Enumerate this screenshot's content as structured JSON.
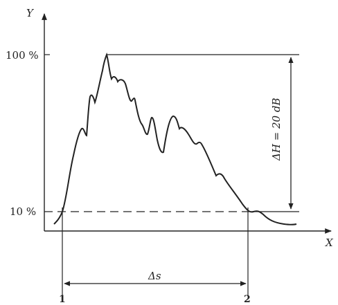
{
  "axes": {
    "y_label": "Y",
    "x_label": "X"
  },
  "levels": {
    "top_label": "100 %",
    "bottom_label": "10 %"
  },
  "range": {
    "label": "ΔH = 20 dB"
  },
  "interval": {
    "label": "Δs",
    "start_label": "1",
    "end_label": "2"
  },
  "colors": {
    "ink": "#222222"
  }
}
